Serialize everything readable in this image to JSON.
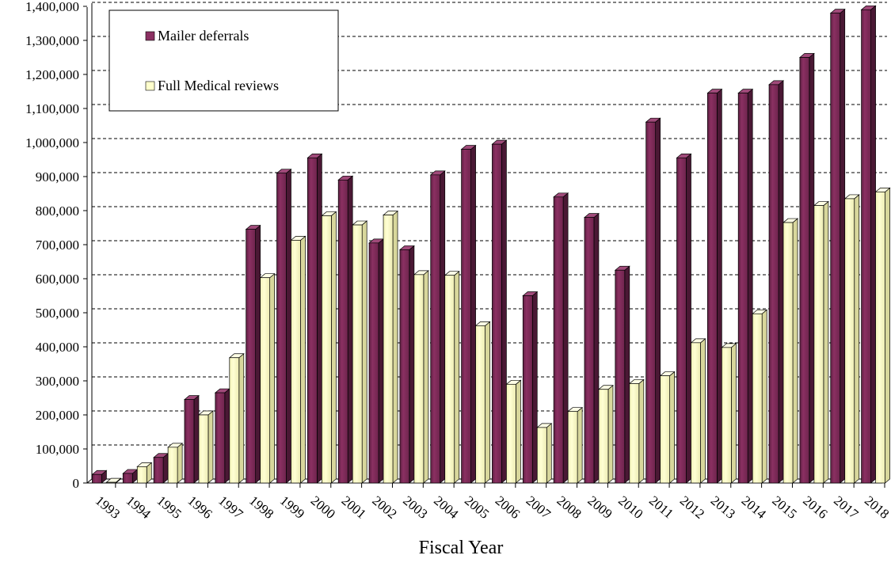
{
  "chart_data": {
    "type": "bar",
    "categories": [
      "1993",
      "1994",
      "1995",
      "1996",
      "1997",
      "1998",
      "1999",
      "2000",
      "2001",
      "2002",
      "2003",
      "2004",
      "2005",
      "2006",
      "2007",
      "2008",
      "2009",
      "2010",
      "2011",
      "2012",
      "2013",
      "2014",
      "2015",
      "2016",
      "2017",
      "2018"
    ],
    "series": [
      {
        "name": "Mailer deferrals",
        "color": "#8b3062",
        "values": [
          25000,
          28000,
          75000,
          245000,
          265000,
          745000,
          910000,
          955000,
          890000,
          705000,
          685000,
          905000,
          980000,
          995000,
          550000,
          840000,
          780000,
          625000,
          1060000,
          955000,
          1145000,
          1145000,
          1170000,
          1250000,
          1380000,
          1390000
        ]
      },
      {
        "name": "Full Medical reviews",
        "color": "#ffffcc",
        "values": [
          2000,
          48000,
          105000,
          200000,
          368000,
          603000,
          713000,
          785000,
          758000,
          787000,
          612000,
          610000,
          462000,
          290000,
          163000,
          210000,
          275000,
          292000,
          315000,
          412000,
          398000,
          497000,
          765000,
          815000,
          835000,
          855000
        ]
      }
    ],
    "title": "",
    "xlabel": "Fiscal Year",
    "ylabel": "",
    "ylim": [
      0,
      1400000
    ],
    "yticks": [
      "0",
      "100,000",
      "200,000",
      "300,000",
      "400,000",
      "500,000",
      "600,000",
      "700,000",
      "800,000",
      "900,000",
      "1,000,000",
      "1,100,000",
      "1,200,000",
      "1,300,000",
      "1,400,000"
    ],
    "grid": true,
    "legend_position": "top-left"
  }
}
